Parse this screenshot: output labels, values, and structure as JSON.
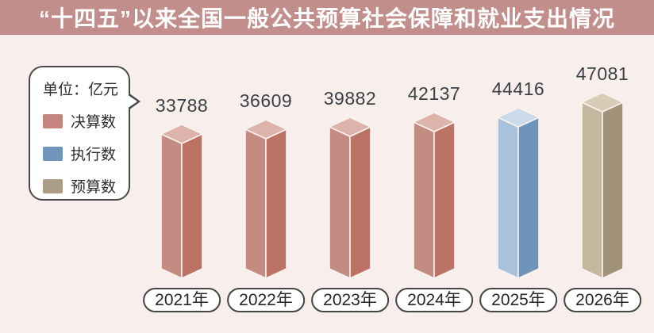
{
  "page": {
    "title": "“十四五”以来全国一般公共预算社会保障和就业支出情况",
    "title_bar_color": "#c18e8b",
    "background_color": "#f8eeeb"
  },
  "legend": {
    "unit_label": "单位：亿元",
    "items": [
      {
        "label": "决算数",
        "color": "#c5857f"
      },
      {
        "label": "执行数",
        "color": "#7295bc"
      },
      {
        "label": "预算数",
        "color": "#ab9d85"
      }
    ]
  },
  "chart_data": {
    "type": "bar",
    "title": "“十四五”以来全国一般公共预算社会保障和就业支出情况",
    "unit": "亿元",
    "categories": [
      "2021年",
      "2022年",
      "2023年",
      "2024年",
      "2025年",
      "2026年"
    ],
    "values": [
      33788,
      36609,
      39882,
      42137,
      44416,
      47081
    ],
    "series_by_category": [
      "决算数",
      "决算数",
      "决算数",
      "决算数",
      "执行数",
      "预算数"
    ],
    "legend_entries": [
      "决算数",
      "执行数",
      "预算数"
    ],
    "legend_position": "top-left",
    "grid": false,
    "bar_style": "3d-column",
    "colors": {
      "决算数": {
        "left": "#c38b82",
        "right": "#bd7266",
        "top": "#dcb4ac"
      },
      "执行数": {
        "left": "#a9c2dc",
        "right": "#6e94ba",
        "top": "#cbd9e9"
      },
      "预算数": {
        "left": "#c5b79e",
        "right": "#a29279",
        "top": "#d7ccb5"
      }
    }
  }
}
